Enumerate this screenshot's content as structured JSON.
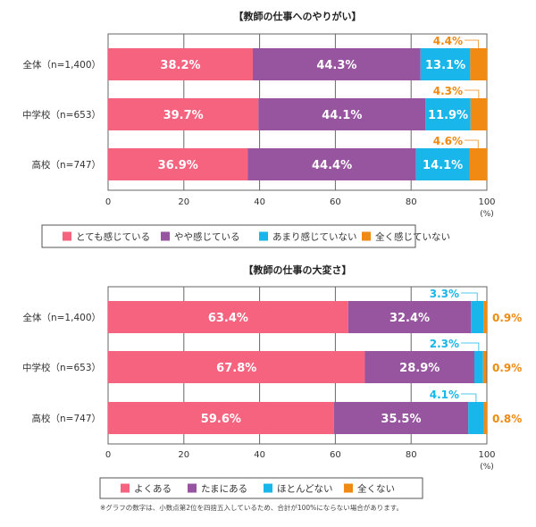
{
  "chart_data": [
    {
      "type": "bar",
      "orientation": "horizontal",
      "stacked": true,
      "title": "【教師の仕事へのやりがい】",
      "categories": [
        "全体（n=1,400）",
        "中学校（n=653）",
        "高校（n=747）"
      ],
      "series": [
        {
          "name": "とても感じている",
          "color": "#f5637f",
          "values": [
            38.2,
            39.7,
            36.9
          ]
        },
        {
          "name": "やや感じている",
          "color": "#97559f",
          "values": [
            44.3,
            44.1,
            44.4
          ]
        },
        {
          "name": "あまり感じていない",
          "color": "#18b6ea",
          "values": [
            13.1,
            11.9,
            14.1
          ]
        },
        {
          "name": "全く感じていない",
          "color": "#f08a12",
          "values": [
            4.4,
            4.3,
            4.6
          ]
        }
      ],
      "value_labels": [
        [
          "38.2%",
          "44.3%",
          "13.1%",
          "4.4%"
        ],
        [
          "39.7%",
          "44.1%",
          "11.9%",
          "4.3%"
        ],
        [
          "36.9%",
          "44.4%",
          "14.1%",
          "4.6%"
        ]
      ],
      "xlim": [
        0,
        100
      ],
      "xticks": [
        "0",
        "20",
        "40",
        "60",
        "80",
        "100"
      ],
      "xunit": "(%)",
      "grid": true,
      "legend": "bottom"
    },
    {
      "type": "bar",
      "orientation": "horizontal",
      "stacked": true,
      "title": "【教師の仕事の大変さ】",
      "categories": [
        "全体（n=1,400）",
        "中学校（n=653）",
        "高校（n=747）"
      ],
      "series": [
        {
          "name": "よくある",
          "color": "#f5637f",
          "values": [
            63.4,
            67.8,
            59.6
          ]
        },
        {
          "name": "たまにある",
          "color": "#97559f",
          "values": [
            32.4,
            28.9,
            35.5
          ]
        },
        {
          "name": "ほとんどない",
          "color": "#18b6ea",
          "values": [
            3.3,
            2.3,
            4.1
          ]
        },
        {
          "name": "全くない",
          "color": "#f08a12",
          "values": [
            0.9,
            0.9,
            0.8
          ]
        }
      ],
      "value_labels": [
        [
          "63.4%",
          "32.4%",
          "3.3%",
          "0.9%"
        ],
        [
          "67.8%",
          "28.9%",
          "2.3%",
          "0.9%"
        ],
        [
          "59.6%",
          "35.5%",
          "4.1%",
          "0.8%"
        ]
      ],
      "xlim": [
        0,
        100
      ],
      "xticks": [
        "0",
        "20",
        "40",
        "60",
        "80",
        "100"
      ],
      "xunit": "(%)",
      "grid": true,
      "legend": "bottom"
    }
  ],
  "footnote": "※グラフの数字は、小数点第2位を四捨五入しているため、合計が100%にならない場合があります。"
}
